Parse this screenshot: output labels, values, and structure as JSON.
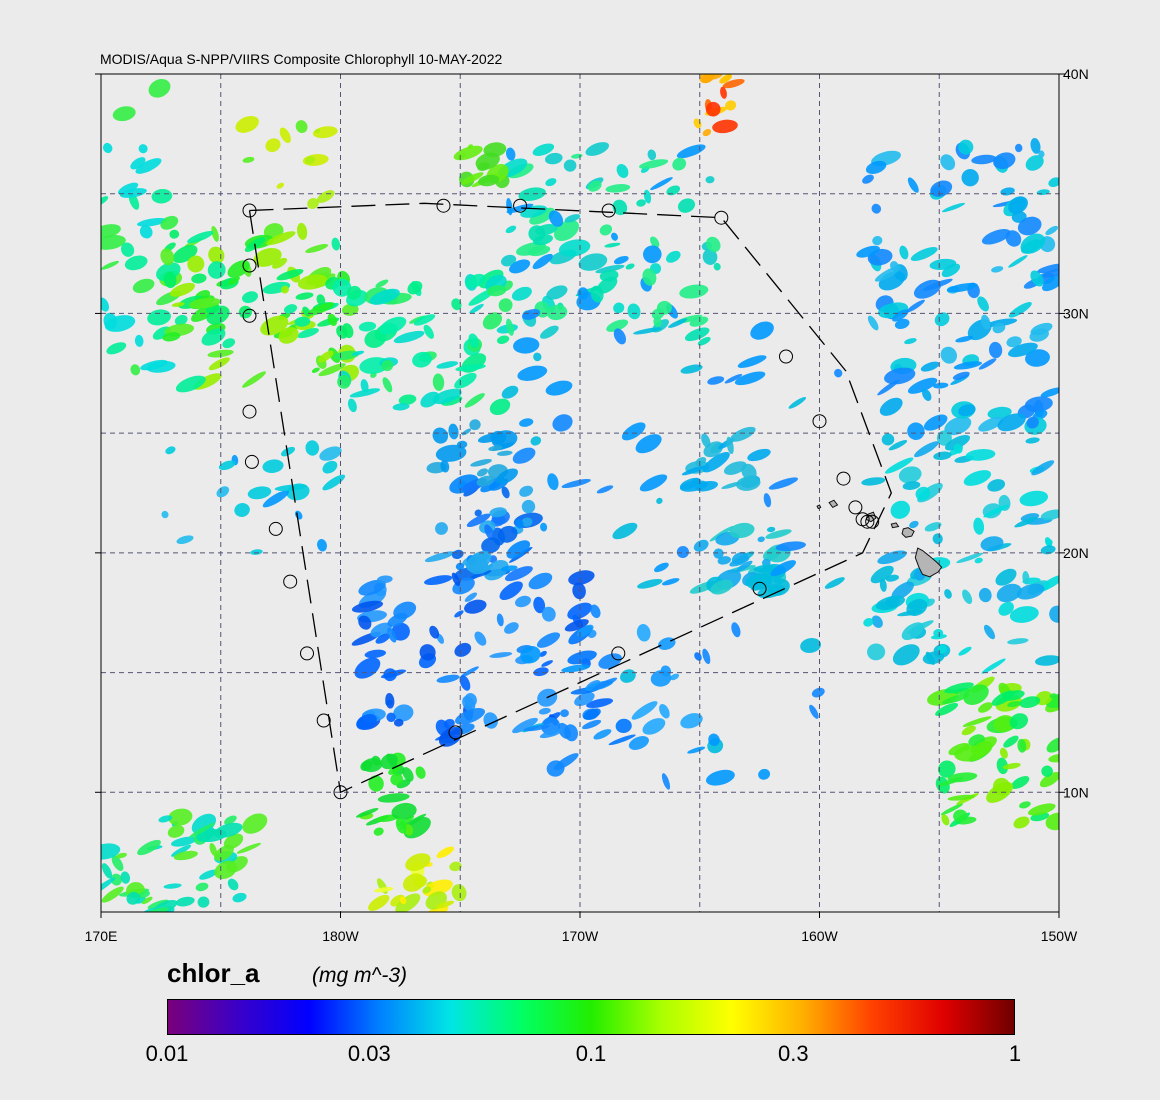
{
  "title": "MODIS/Aqua S-NPP/VIIRS Composite Chlorophyll 10-MAY-2022",
  "lon_labels": [
    "170E",
    "180W",
    "170W",
    "160W",
    "150W"
  ],
  "lat_labels": [
    "40N",
    "30N",
    "20N",
    "10N"
  ],
  "extent": {
    "lon_min": 170,
    "lon_max": 210,
    "lat_min": 5,
    "lat_max": 40
  },
  "colorbar": {
    "variable": "chlor_a",
    "units": "(mg m^-3)",
    "tick_labels": [
      "0.01",
      "0.03",
      "0.1",
      "0.3",
      "1"
    ],
    "tick_values": [
      0.01,
      0.03,
      0.1,
      0.3,
      1
    ],
    "scale": "log",
    "colors": [
      "#7a007a",
      "#3a00c8",
      "#0000ff",
      "#0080ff",
      "#00e5e5",
      "#00ff66",
      "#22ee00",
      "#aaff00",
      "#ffff00",
      "#ffb000",
      "#ff4000",
      "#e00000",
      "#700000"
    ]
  },
  "track_waypoints": [
    {
      "lon": 176.2,
      "lat": 34.3
    },
    {
      "lon": 183.5,
      "lat": 34.6
    },
    {
      "lon": 195.9,
      "lat": 34.0
    },
    {
      "lon": 201.1,
      "lat": 27.6
    },
    {
      "lon": 203.0,
      "lat": 22.5
    },
    {
      "lon": 201.8,
      "lat": 20.0
    },
    {
      "lon": 180.0,
      "lat": 10.0
    },
    {
      "lon": 176.2,
      "lat": 34.3
    }
  ],
  "station_markers": [
    {
      "lon": 176.2,
      "lat": 34.3
    },
    {
      "lon": 184.3,
      "lat": 34.5
    },
    {
      "lon": 187.5,
      "lat": 34.5
    },
    {
      "lon": 191.2,
      "lat": 34.3
    },
    {
      "lon": 195.9,
      "lat": 34.0
    },
    {
      "lon": 198.6,
      "lat": 28.2
    },
    {
      "lon": 200.0,
      "lat": 25.5
    },
    {
      "lon": 201.0,
      "lat": 23.1
    },
    {
      "lon": 201.5,
      "lat": 21.9
    },
    {
      "lon": 201.8,
      "lat": 21.4
    },
    {
      "lon": 202.0,
      "lat": 21.3
    },
    {
      "lon": 202.2,
      "lat": 21.3
    },
    {
      "lon": 197.5,
      "lat": 18.5
    },
    {
      "lon": 191.6,
      "lat": 15.8
    },
    {
      "lon": 184.8,
      "lat": 12.5
    },
    {
      "lon": 179.3,
      "lat": 13.0
    },
    {
      "lon": 178.6,
      "lat": 15.8
    },
    {
      "lon": 177.9,
      "lat": 18.8
    },
    {
      "lon": 177.3,
      "lat": 21.0
    },
    {
      "lon": 176.3,
      "lat": 23.8
    },
    {
      "lon": 176.2,
      "lat": 25.9
    },
    {
      "lon": 176.2,
      "lat": 29.9
    },
    {
      "lon": 176.2,
      "lat": 32.0
    },
    {
      "lon": 180.0,
      "lat": 10.0
    }
  ],
  "land_features": [
    "main-hawaiian-islands",
    "northwestern-hawaiian-islands"
  ]
}
